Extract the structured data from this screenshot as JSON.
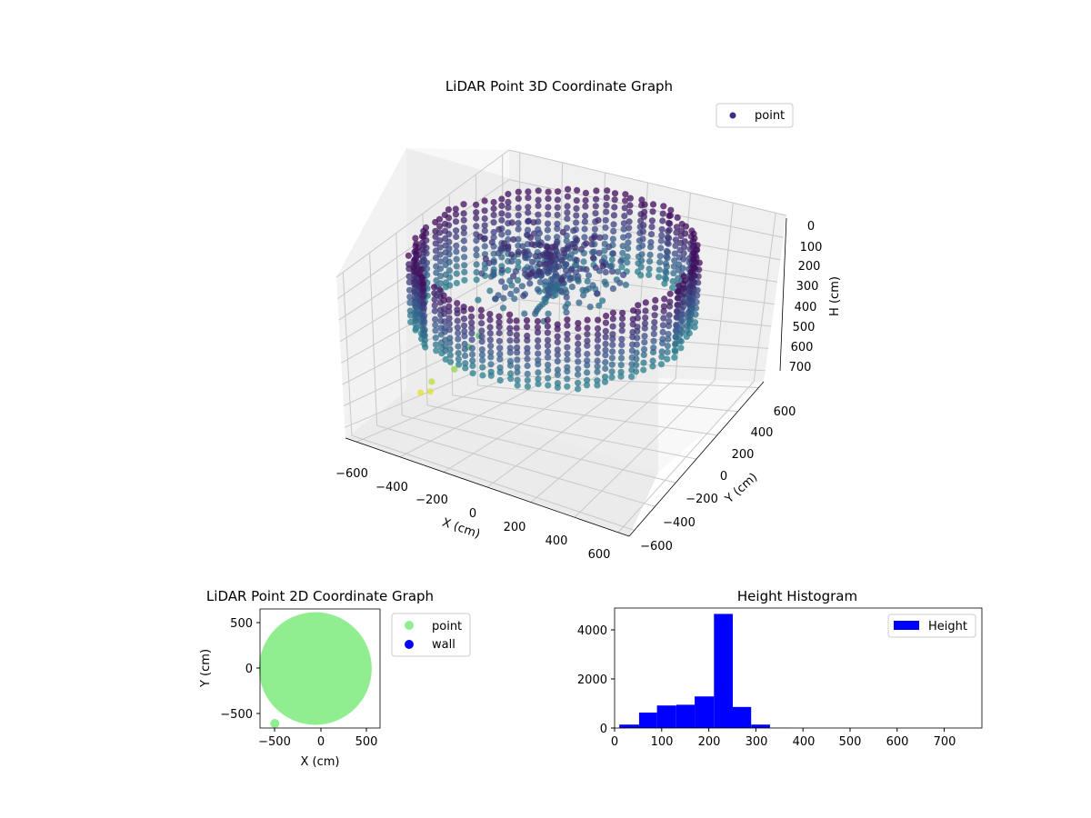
{
  "chart_data": [
    {
      "type": "scatter",
      "projection": "3d",
      "title": "LiDAR Point 3D Coordinate Graph",
      "xlabel": "X (cm)",
      "ylabel": "Y (cm)",
      "zlabel": "H (cm)",
      "x_ticks": [
        "−600",
        "−400",
        "−200",
        "0",
        "200",
        "400",
        "600"
      ],
      "y_ticks": [
        "−600",
        "−400",
        "−200",
        "0",
        "200",
        "400",
        "600"
      ],
      "z_ticks": [
        "0",
        "100",
        "200",
        "300",
        "400",
        "500",
        "600",
        "700"
      ],
      "xlim": [
        -650,
        650
      ],
      "ylim": [
        -650,
        650
      ],
      "zlim": [
        0,
        750
      ],
      "z_inverted": true,
      "colormap": "viridis",
      "grid": true,
      "legend": {
        "position": "top-right",
        "entries": [
          {
            "label": "point",
            "color": "#3b2f80"
          }
        ]
      },
      "shape": "ring of points around the perimeter, radius about 550 cm, heights mostly 0–300 cm",
      "outliers": [
        {
          "x": -650,
          "y": -50,
          "h": 690
        },
        {
          "x": -620,
          "y": -10,
          "h": 650
        },
        {
          "x": -610,
          "y": -40,
          "h": 680
        },
        {
          "x": -540,
          "y": 40,
          "h": 600
        },
        {
          "x": -500,
          "y": 90,
          "h": 520
        },
        {
          "x": -470,
          "y": 120,
          "h": 480
        }
      ]
    },
    {
      "type": "scatter",
      "title": "LiDAR Point 2D Coordinate Graph",
      "xlabel": "X (cm)",
      "ylabel": "Y (cm)",
      "x_ticks": [
        "−500",
        "0",
        "500"
      ],
      "y_ticks": [
        "500",
        "0",
        "−500"
      ],
      "xlim": [
        -650,
        650
      ],
      "ylim": [
        -660,
        660
      ],
      "legend": {
        "position": "outside-right",
        "entries": [
          {
            "label": "point",
            "color": "#90ee90"
          },
          {
            "label": "wall",
            "color": "#0000ff"
          }
        ]
      },
      "series": [
        {
          "name": "point",
          "color": "#90ee90",
          "shape": "filled disc, center ≈ (-50, 0), radius ≈ 610"
        }
      ]
    },
    {
      "type": "bar",
      "title": "Height Histogram",
      "x_ticks": [
        "0",
        "100",
        "200",
        "300",
        "400",
        "500",
        "600",
        "700"
      ],
      "y_ticks": [
        "0",
        "2000",
        "4000"
      ],
      "xlim": [
        0,
        780
      ],
      "ylim": [
        0,
        4900
      ],
      "bar_color": "#0000ff",
      "legend": {
        "position": "top-right",
        "entries": [
          {
            "label": "Height",
            "color": "#0000ff"
          }
        ]
      },
      "bins": [
        {
          "x0": 10,
          "x1": 52,
          "count": 140
        },
        {
          "x0": 52,
          "x1": 90,
          "count": 630
        },
        {
          "x0": 90,
          "x1": 131,
          "count": 920
        },
        {
          "x0": 131,
          "x1": 170,
          "count": 950
        },
        {
          "x0": 170,
          "x1": 211,
          "count": 1290
        },
        {
          "x0": 211,
          "x1": 251,
          "count": 4660
        },
        {
          "x0": 251,
          "x1": 290,
          "count": 860
        },
        {
          "x0": 290,
          "x1": 330,
          "count": 140
        },
        {
          "x0": 330,
          "x1": 370,
          "count": 8
        },
        {
          "x0": 370,
          "x1": 730,
          "count": 3
        }
      ]
    }
  ]
}
